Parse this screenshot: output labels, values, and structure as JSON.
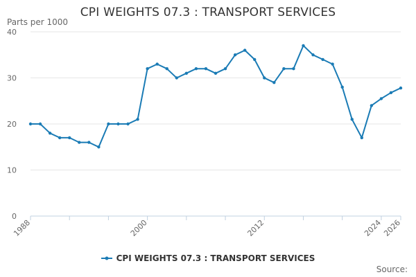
{
  "title": "CPI WEIGHTS 07.3 : TRANSPORT SERVICES",
  "y_unit_label": "Parts per 1000",
  "source_label": "Source:",
  "colors": {
    "series": "#1a7bb5",
    "grid": "#e6e6e6",
    "axis": "#c0d0e0",
    "tick_text": "#666666"
  },
  "chart_data": {
    "type": "line",
    "title": "CPI WEIGHTS 07.3 : TRANSPORT SERVICES",
    "xlabel": "",
    "ylabel": "Parts per 1000",
    "xlim": [
      1988,
      2026
    ],
    "ylim": [
      0,
      40
    ],
    "y_ticks": [
      0,
      10,
      20,
      30,
      40
    ],
    "x_tick_labels": [
      1988,
      2000,
      2012,
      2024,
      2026
    ],
    "grid": true,
    "legend_position": "bottom",
    "series": [
      {
        "name": "CPI WEIGHTS 07.3 : TRANSPORT SERVICES",
        "x": [
          1988,
          1989,
          1990,
          1991,
          1992,
          1993,
          1994,
          1995,
          1996,
          1997,
          1998,
          1999,
          2000,
          2001,
          2002,
          2003,
          2004,
          2005,
          2006,
          2007,
          2008,
          2009,
          2010,
          2011,
          2012,
          2013,
          2014,
          2015,
          2016,
          2017,
          2018,
          2019,
          2020,
          2021,
          2022,
          2023,
          2024,
          2025,
          2026
        ],
        "values": [
          20,
          20,
          18,
          17,
          17,
          16,
          16,
          15,
          20,
          20,
          20,
          21,
          32,
          33,
          32,
          30,
          31,
          32,
          32,
          31,
          32,
          35,
          36,
          34,
          30,
          29,
          32,
          32,
          37,
          35,
          34,
          33,
          28,
          21,
          17,
          24,
          25.5,
          26.8,
          27.8
        ]
      }
    ]
  }
}
